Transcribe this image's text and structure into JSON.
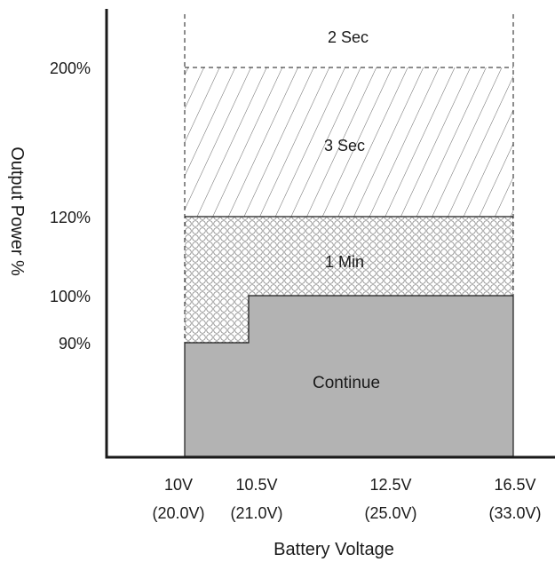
{
  "diagram": {
    "y_axis_title": "Output Power %",
    "x_axis_title": "Battery Voltage",
    "y_ticks": [
      "200%",
      "120%",
      "100%",
      "90%"
    ],
    "x_ticks": [
      {
        "volt": "10V",
        "alt": "(20.0V)"
      },
      {
        "volt": "10.5V",
        "alt": "(21.0V)"
      },
      {
        "volt": "12.5V",
        "alt": "(25.0V)"
      },
      {
        "volt": "16.5V",
        "alt": "(33.0V)"
      }
    ],
    "regions": {
      "two_sec": "2 Sec",
      "three_sec": "3 Sec",
      "one_min": "1 Min",
      "continue": "Continue"
    },
    "colors": {
      "continue_fill": "#b3b3b3",
      "pattern_stroke": "#555555",
      "axis": "#1a1a1a"
    }
  }
}
